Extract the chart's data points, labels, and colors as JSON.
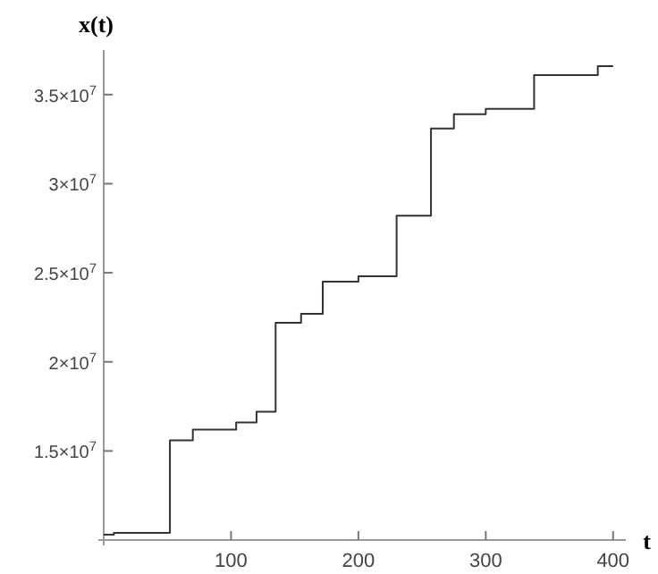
{
  "chart_data": {
    "type": "step",
    "xlabel": "t",
    "ylabel": "x(t)",
    "x": [
      0,
      8,
      52,
      70,
      104,
      120,
      135,
      155,
      172,
      200,
      230,
      257,
      275,
      300,
      338,
      388,
      400
    ],
    "series": [
      {
        "color": "#333333",
        "values": [
          10300000,
          10400000,
          15600000,
          16200000,
          16600000,
          17200000,
          22200000,
          22700000,
          24500000,
          24800000,
          28200000,
          33100000,
          33900000,
          34200000,
          36100000,
          36600000,
          36600000
        ]
      }
    ],
    "xlim": [
      0,
      410
    ],
    "ylim": [
      10000000,
      37500000
    ],
    "xticks": [
      100,
      200,
      300,
      400
    ],
    "yticks": [
      {
        "value": 15000000,
        "label": "1.5×10$^{7}$"
      },
      {
        "value": 20000000,
        "label": "2×10$^{7}$"
      },
      {
        "value": 25000000,
        "label": "2.5×10$^{7}$"
      },
      {
        "value": 30000000,
        "label": "3×10$^{7}$"
      },
      {
        "value": 35000000,
        "label": "3.5×10$^{7}$"
      }
    ],
    "grid": false,
    "line_style": "solid"
  }
}
